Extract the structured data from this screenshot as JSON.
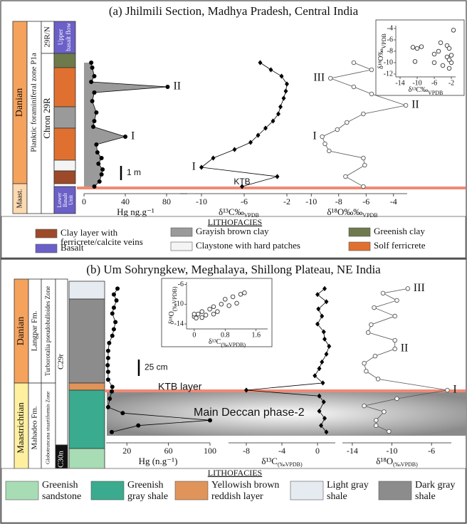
{
  "panels": [
    {
      "title": "(a) Jhilmili Section, Madhya Pradesh, Central India",
      "strat": {
        "stage_upper": "Danian",
        "stage_lower": "Maast.",
        "zone": "Planktic foraminiferal zone P1a",
        "chron_upper": "29R/N",
        "chron": "Chron 29R",
        "upper_unit": [
          "Upper",
          "basalt flow"
        ],
        "lower_unit": [
          "Lower",
          "Basalt",
          "Unit"
        ]
      },
      "ktb_label": "KTB",
      "scale_bar": {
        "value": 1,
        "label": "1 m"
      },
      "lithofacies_title": "LITHOFACIES",
      "lithofacies": [
        {
          "label_lines": [
            "Clay layer with",
            "ferricrete/calcite veins"
          ],
          "color": "#9c4a2a"
        },
        {
          "label_lines": [
            "Basalt"
          ],
          "color": "#6b5fc8"
        },
        {
          "label_lines": [
            "Grayish brown clay"
          ],
          "color": "#9a9a9a"
        },
        {
          "label_lines": [
            "Claystone with hard patches"
          ],
          "color": "#f4f4f4"
        },
        {
          "label_lines": [
            "Greenish clay"
          ],
          "color": "#6e7a4c"
        },
        {
          "label_lines": [
            "Solf ferricrete"
          ],
          "color": "#e07030"
        }
      ]
    },
    {
      "title": "(b) Um Sohryngkew, Meghalaya, Shillong Plateau, NE India",
      "strat": {
        "stage_upper": "Danian",
        "stage_lower": "Maastrichtian",
        "formation_upper": "Langpar Fm.",
        "formation_lower": "Mahadeo Fm.",
        "zone_upper": "Turborotalia pseudobulloides Zone",
        "zone_lower": "Globotruncana stuartiformis Zone",
        "chron_upper": "C29r",
        "chron_lower": "C30n"
      },
      "ktb_label": "KTB layer",
      "phase_label": "Main Deccan phase-2",
      "scale_bar": {
        "value": 25,
        "label": "25 cm"
      },
      "lithofacies_title": "LITHOFACIES",
      "lithofacies": [
        {
          "label_lines": [
            "Greenish",
            "sandstone"
          ],
          "color": "#a8dcb4"
        },
        {
          "label_lines": [
            "Greenish",
            "gray shale"
          ],
          "color": "#3aab8e"
        },
        {
          "label_lines": [
            "Yellowish brown",
            "reddish layer"
          ],
          "color": "#e0945a"
        },
        {
          "label_lines": [
            "Light gray",
            "shale"
          ],
          "color": "#e6ebf2"
        },
        {
          "label_lines": [
            "Dark gray",
            "shale"
          ],
          "color": "#8c8c8c"
        }
      ]
    }
  ],
  "chart_data": [
    {
      "type": "line",
      "x_label": {
        "main": "Hg ng.g⁻¹"
      },
      "xlim": [
        0,
        100
      ],
      "xticks": [
        0,
        40,
        80
      ],
      "values": [
        7,
        8,
        10,
        7,
        81,
        10,
        8,
        12,
        10,
        9,
        40,
        12,
        13,
        17,
        14,
        18,
        17,
        15,
        10
      ],
      "heights": [
        8.8,
        8.45,
        7.85,
        7.45,
        7.1,
        6.7,
        6.1,
        5.3,
        4.7,
        4.3,
        3.6,
        3.05,
        2.5,
        2.1,
        1.7,
        1.3,
        0.95,
        0.45,
        0.1
      ],
      "point_labels": [
        null,
        null,
        null,
        null,
        "II",
        null,
        null,
        null,
        null,
        null,
        "I",
        null,
        null,
        null,
        null,
        null,
        null,
        null,
        null
      ],
      "marker": "circle",
      "color": "#000000",
      "area_color": "#9a9a9a"
    },
    {
      "type": "line",
      "x_label": {
        "main": "δ¹³C‰",
        "sub": "VPDB"
      },
      "xlim": [
        -12,
        -1
      ],
      "xticks": [
        -10,
        -6,
        -2
      ],
      "values": [
        -4.5,
        -3.5,
        -2.5,
        -2.0,
        -2.1,
        -2.3,
        -2.6,
        -2.8,
        -3.3,
        -4.0,
        -4.7,
        -5.4,
        -6.9,
        -8.9,
        -10,
        -2.9,
        -6.2
      ],
      "heights": [
        8.8,
        8.3,
        7.85,
        7.3,
        6.8,
        6.3,
        5.7,
        5.2,
        4.7,
        4.2,
        3.7,
        3.2,
        2.7,
        2.1,
        1.45,
        0.8,
        0.1
      ],
      "point_labels": [
        null,
        null,
        null,
        null,
        null,
        null,
        null,
        null,
        null,
        null,
        null,
        null,
        null,
        null,
        "I",
        null,
        null
      ],
      "marker": "diamond",
      "color": "#000000"
    },
    {
      "type": "line",
      "x_label": {
        "main": "δ¹⁸O‰‰",
        "sub": "VPDB"
      },
      "xlim": [
        -11,
        -3
      ],
      "xticks": [
        -10,
        -8,
        -6,
        -4
      ],
      "values": [
        -6.9,
        -5.6,
        -8.6,
        -6.9,
        -5.6,
        -3.1,
        -6.2,
        -7.4,
        -8.1,
        -9.2,
        -9.0,
        -8.7,
        -6.2,
        -6.1,
        -7.5,
        -6.2
      ],
      "heights": [
        8.8,
        8.3,
        7.7,
        7.1,
        6.6,
        5.8,
        5.2,
        4.6,
        4.1,
        3.6,
        3.1,
        2.6,
        2.1,
        1.6,
        0.8,
        0.1
      ],
      "point_labels": [
        null,
        null,
        "III",
        null,
        null,
        "II",
        null,
        null,
        null,
        "I",
        null,
        null,
        null,
        null,
        null,
        null
      ],
      "marker": "open-circle",
      "color": "#555555"
    },
    {
      "type": "scatter",
      "x_label": {
        "main": "δ¹³C‰",
        "sub": "VPDB"
      },
      "y_label": {
        "main": "δ¹⁸O‰",
        "sub": "VPDB"
      },
      "xlim": [
        -15,
        -1
      ],
      "xticks": [
        -14,
        -10,
        -6,
        -2
      ],
      "ylim": [
        -12.5,
        -3.5
      ],
      "yticks": [
        -12,
        -10,
        -8,
        -6,
        -4
      ],
      "x": [
        -11,
        -10,
        -9,
        -10.5,
        -5,
        -4.5,
        -3,
        -2.5,
        -2,
        -2,
        -3,
        -2.5,
        -4,
        -6,
        -6,
        -1.5,
        -2.5
      ],
      "values": [
        -7.3,
        -7.5,
        -7.2,
        -9.8,
        -8,
        -6.5,
        -7,
        -7.5,
        -8.7,
        -10,
        -9,
        -11,
        -10.5,
        -10,
        -8.5,
        -4.3,
        -9.5
      ],
      "marker": "open-circle",
      "color": "#333333"
    },
    {
      "type": "line",
      "x_label": {
        "main": "Hg (n.g⁻¹)"
      },
      "xlim": [
        0,
        100
      ],
      "xticks": [
        20,
        60,
        100
      ],
      "values": [
        11,
        7.5,
        10,
        7.5,
        6,
        9,
        7.5,
        6,
        3,
        2,
        2,
        1.5,
        2,
        2,
        6,
        5.5,
        3.5,
        2,
        16,
        100,
        31,
        5.5
      ],
      "heights": [
        155,
        146,
        137,
        126,
        117,
        104,
        93,
        83,
        72,
        60,
        49,
        38,
        28,
        16,
        5,
        -2,
        -13,
        -26,
        -35,
        -46,
        -54,
        -64
      ],
      "marker": "circle",
      "color": "#000000"
    },
    {
      "type": "line",
      "x_label": {
        "main": "δ¹³C",
        "sub": "(‰VPDB)"
      },
      "xlim": [
        -10,
        2
      ],
      "xticks": [
        -8,
        -4,
        0
      ],
      "values": [
        0.8,
        0,
        1.0,
        0.1,
        0.5,
        0,
        0.7,
        0.8,
        1.3,
        1.0,
        0.5,
        0.2,
        -0.3,
        0.6,
        -8,
        0.2,
        0.7,
        0.2,
        0.8,
        0.4,
        1.0
      ],
      "heights": [
        155,
        146,
        135,
        124,
        113,
        101,
        89,
        78,
        67,
        55,
        43,
        33,
        22,
        11,
        0,
        -9,
        -18,
        -32,
        -43,
        -54,
        -64
      ],
      "marker": "diamond",
      "color": "#000000"
    },
    {
      "type": "line",
      "x_label": {
        "main": "δ¹⁸O",
        "sub": "(‰VPDB)"
      },
      "xlim": [
        -15,
        -4
      ],
      "xticks": [
        -14,
        -10,
        -6
      ],
      "values": [
        -8.4,
        -10.9,
        -9.5,
        -11.8,
        -9.7,
        -12.1,
        -12.4,
        -9.7,
        -9.7,
        -11.7,
        -12.8,
        -12.6,
        -11.4,
        -4.4,
        -9.5,
        -12.8,
        -10.8,
        -11.6,
        -11.6,
        -10.3
      ],
      "heights": [
        155,
        148,
        137,
        126,
        113,
        100,
        88,
        76,
        63,
        52,
        41,
        29,
        17,
        0,
        -13,
        -24,
        -33,
        -46,
        -54,
        -63
      ],
      "point_labels": [
        "III",
        null,
        null,
        null,
        null,
        null,
        null,
        null,
        "II",
        null,
        null,
        null,
        null,
        "I",
        null,
        null,
        null,
        null,
        null,
        null
      ],
      "marker": "open-circle",
      "color": "#555555"
    },
    {
      "type": "scatter",
      "x_label": {
        "main": "δ¹³C",
        "sub": "(‰VPDB)"
      },
      "y_label": {
        "main": "δ¹⁸O",
        "sub": "(‰VPDB)"
      },
      "xlim": [
        -0.2,
        1.9
      ],
      "xticks": [
        0,
        0.8,
        1.6
      ],
      "ylim": [
        -15,
        -5.5
      ],
      "yticks": [
        -14,
        -10,
        -6
      ],
      "x": [
        0,
        0.1,
        0.05,
        0.2,
        0.3,
        0.2,
        0.4,
        0.5,
        0.6,
        0.7,
        0.8,
        1.0,
        1.1,
        1.2,
        1.3,
        0.9,
        0.5,
        0
      ],
      "values": [
        -12.5,
        -12,
        -12.8,
        -11.5,
        -12.2,
        -12.7,
        -11,
        -10.5,
        -11.5,
        -10,
        -9,
        -8.5,
        -9.8,
        -8,
        -7.7,
        -10.3,
        -12,
        -12
      ],
      "marker": "open-circle",
      "color": "#333333"
    }
  ]
}
